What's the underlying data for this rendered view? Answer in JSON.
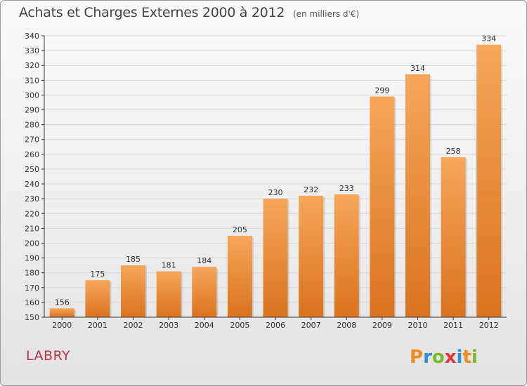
{
  "header": {
    "title": "Achats et Charges Externes 2000 à 2012",
    "subtitle": "(en milliers d'€)"
  },
  "footer": {
    "town": "LABRY",
    "logo_text": "Proxiti",
    "logo_icon": "proxiti-logo"
  },
  "colors": {
    "bar_top": "#f6a65a",
    "bar_bottom": "#d9731f",
    "grid": "#d6d6d6",
    "axis": "#333333"
  },
  "chart_data": {
    "type": "bar",
    "title": "Achats et Charges Externes 2000 à 2012",
    "subtitle": "(en milliers d'€)",
    "xlabel": "",
    "ylabel": "",
    "categories": [
      "2000",
      "2001",
      "2002",
      "2003",
      "2004",
      "2005",
      "2006",
      "2007",
      "2008",
      "2009",
      "2010",
      "2011",
      "2012"
    ],
    "values": [
      156,
      175,
      185,
      181,
      184,
      205,
      230,
      232,
      233,
      299,
      314,
      258,
      334
    ],
    "ylim": [
      150,
      340
    ],
    "yticks": [
      150,
      160,
      170,
      180,
      190,
      200,
      210,
      220,
      230,
      240,
      250,
      260,
      270,
      280,
      290,
      300,
      310,
      320,
      330,
      340
    ],
    "grid": true,
    "data_labels": true
  }
}
